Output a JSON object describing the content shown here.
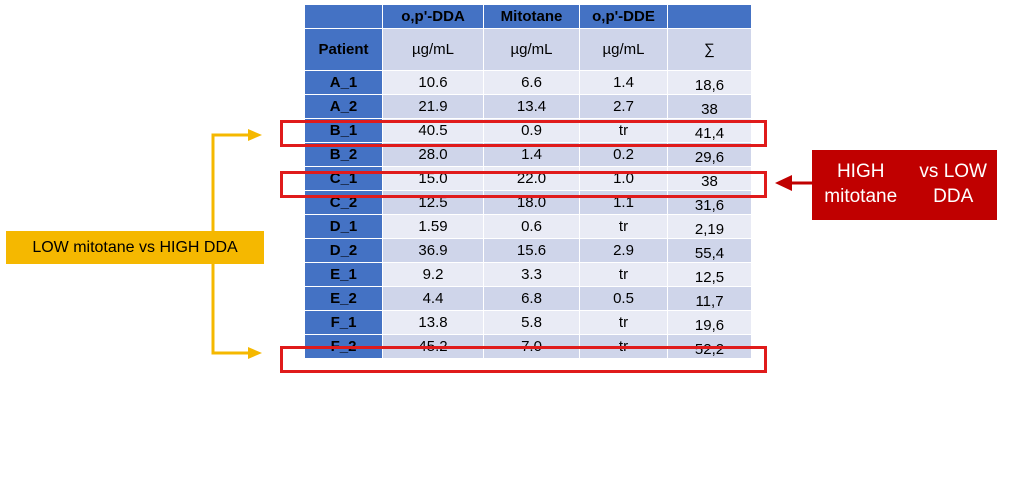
{
  "table": {
    "header_top": [
      "",
      "o,p'-DDA",
      "Mitotane",
      "o,p'-DDE",
      ""
    ],
    "header_units": [
      "Patient",
      "µg/mL",
      "µg/mL",
      "µg/mL",
      "∑"
    ],
    "rows": [
      [
        "A_1",
        "10.6",
        "6.6",
        "1.4",
        "18,6"
      ],
      [
        "A_2",
        "21.9",
        "13.4",
        "2.7",
        "38"
      ],
      [
        "B_1",
        "40.5",
        "0.9",
        "tr",
        "41,4"
      ],
      [
        "B_2",
        "28.0",
        "1.4",
        "0.2",
        "29,6"
      ],
      [
        "C_1",
        "15.0",
        "22.0",
        "1.0",
        "38"
      ],
      [
        "C_2",
        "12.5",
        "18.0",
        "1.1",
        "31,6"
      ],
      [
        "D_1",
        "1.59",
        "0.6",
        "tr",
        "2,19"
      ],
      [
        "D_2",
        "36.9",
        "15.6",
        "2.9",
        "55,4"
      ],
      [
        "E_1",
        "9.2",
        "3.3",
        "tr",
        "12,5"
      ],
      [
        "E_2",
        "4.4",
        "6.8",
        "0.5",
        "11,7"
      ],
      [
        "F_1",
        "13.8",
        "5.8",
        "tr",
        "19,6"
      ],
      [
        "F_2",
        "45.2",
        "7.0",
        "tr",
        "52,2"
      ]
    ]
  },
  "annotations": {
    "low_label": "LOW mitotane vs HIGH DDA",
    "high_label_line1": "HIGH mitotane",
    "high_label_line2": "vs LOW DDA"
  },
  "colors": {
    "header_blue": "#4472c4",
    "row_light": "#e9ebf5",
    "row_dark": "#cfd5ea",
    "highlight_red": "#e01b1b",
    "label_red": "#c00000",
    "label_yellow": "#f5b800",
    "arrow_yellow": "#f5b800"
  }
}
